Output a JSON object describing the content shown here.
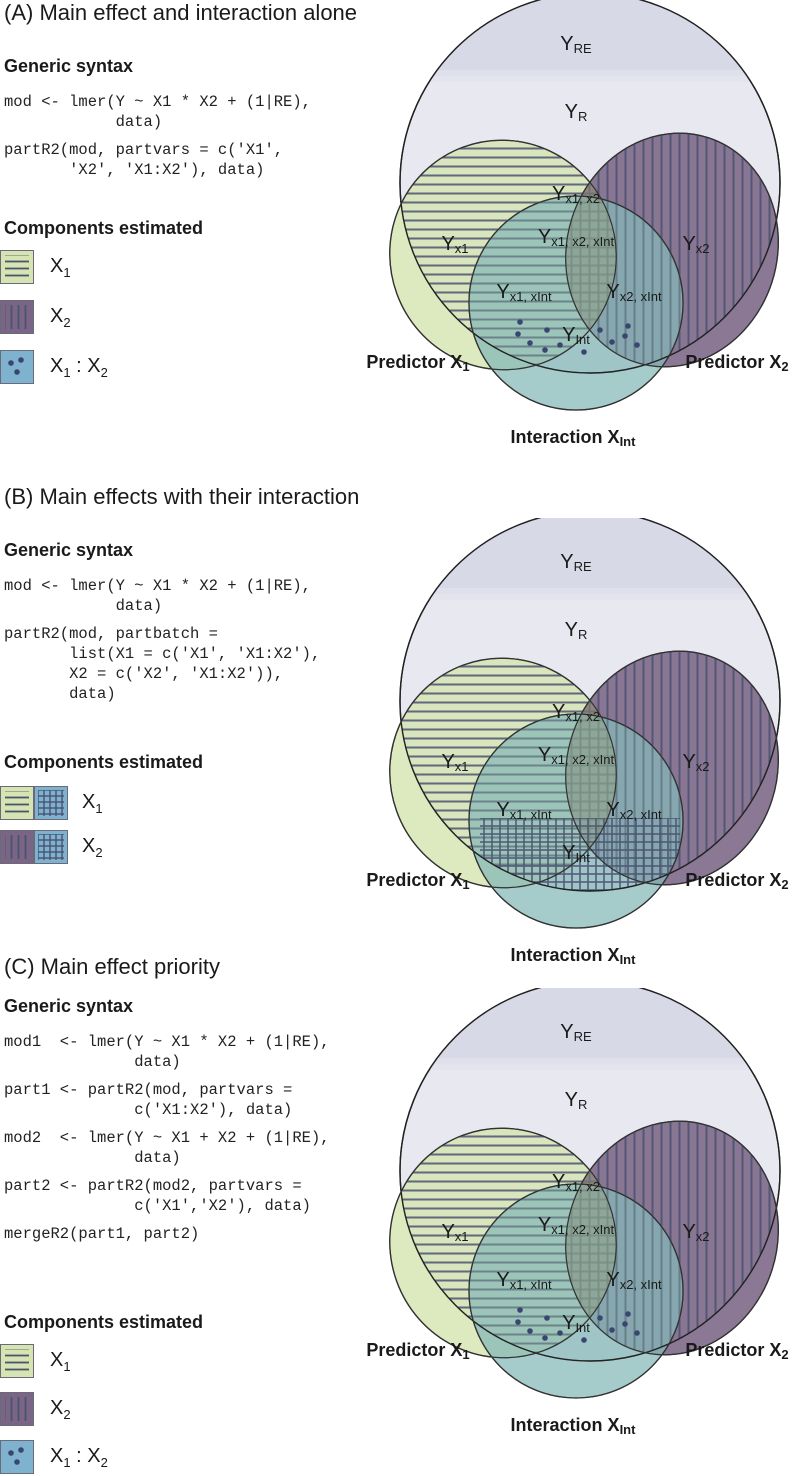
{
  "colors": {
    "x1_fill": "#d5e4b0",
    "x2_fill": "#7a6585",
    "int_fill": "#7fb2cf",
    "r_fill": "#e8e8f0",
    "re_fill": "#d8d9e6",
    "hatch": "#4a5272",
    "dots": "#3a4670"
  },
  "panels": [
    {
      "id": "A",
      "title": "(A) Main effect and interaction alone",
      "syntax_heading": "Generic syntax",
      "code_lines": [
        "mod <- lmer(Y ~ X1 * X2 + (1|RE),",
        "            data)",
        "partR2(mod, partvars = c('X1',",
        "       'X2', 'X1:X2'), data)"
      ],
      "components_heading": "Components estimated",
      "components": [
        {
          "main": "X",
          "sub": "1",
          "tail": "",
          "pattern": "x1"
        },
        {
          "main": "X",
          "sub": "2",
          "tail": "",
          "pattern": "x2"
        },
        {
          "main": "X",
          "sub": "1",
          "tail": " : X",
          "sub2": "2",
          "pattern": "int-dots"
        }
      ],
      "interaction_pattern": "dots"
    },
    {
      "id": "B",
      "title": "(B) Main effects with their interaction",
      "syntax_heading": "Generic syntax",
      "code_lines": [
        "mod <- lmer(Y ~ X1 * X2 + (1|RE),",
        "            data)",
        "partR2(mod, partbatch =",
        "       list(X1 = c('X1', 'X1:X2'),",
        "       X2 = c('X2', 'X1:X2')),",
        "       data)"
      ],
      "components_heading": "Components estimated",
      "components": [
        {
          "main": "X",
          "sub": "1",
          "tail": "",
          "pattern": "x1-grid"
        },
        {
          "main": "X",
          "sub": "2",
          "tail": "",
          "pattern": "x2-grid"
        }
      ],
      "interaction_pattern": "grid"
    },
    {
      "id": "C",
      "title": "(C) Main effect priority",
      "syntax_heading": "Generic syntax",
      "code_lines": [
        "mod1  <- lmer(Y ~ X1 * X2 + (1|RE),",
        "              data)",
        "part1 <- partR2(mod, partvars =",
        "              c('X1:X2'), data)",
        "mod2  <- lmer(Y ~ X1 + X2 + (1|RE),",
        "              data)",
        "part2 <- partR2(mod2, partvars =",
        "              c('X1','X2'), data)",
        "mergeR2(part1, part2)"
      ],
      "components_heading": "Components estimated",
      "components": [
        {
          "main": "X",
          "sub": "1",
          "tail": "",
          "pattern": "x1"
        },
        {
          "main": "X",
          "sub": "2",
          "tail": "",
          "pattern": "x2"
        },
        {
          "main": "X",
          "sub": "1",
          "tail": " : X",
          "sub2": "2",
          "pattern": "int-dots"
        }
      ],
      "interaction_pattern": "dots"
    }
  ],
  "venn_labels": {
    "y_re": {
      "main": "Y",
      "sub": "RE"
    },
    "y_r": {
      "main": "Y",
      "sub": "R"
    },
    "y_x1x2": {
      "main": "Y",
      "sub": "x1, x2"
    },
    "y_x1x2xint": {
      "main": "Y",
      "sub": "x1, x2, xInt"
    },
    "y_x1": {
      "main": "Y",
      "sub": "x1"
    },
    "y_x2": {
      "main": "Y",
      "sub": "x2"
    },
    "y_x1xint": {
      "main": "Y",
      "sub": "x1, xInt"
    },
    "y_x2xint": {
      "main": "Y",
      "sub": "x2, xInt"
    },
    "y_int": {
      "main": "Y",
      "sub": "Int"
    },
    "pred_x1": {
      "main": "Predictor X",
      "sub": "1"
    },
    "pred_x2": {
      "main": "Predictor X",
      "sub": "2"
    },
    "inter": {
      "main": "Interaction X",
      "sub": "Int"
    }
  }
}
